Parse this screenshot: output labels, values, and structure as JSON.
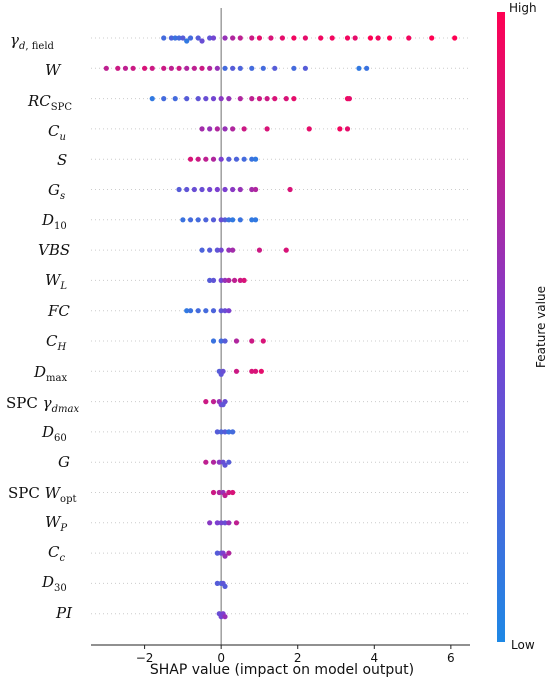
{
  "chart_data": {
    "type": "scatter",
    "subtype": "shap-beeswarm",
    "title": "",
    "xlabel": "SHAP value (impact on model output)",
    "ylabel": "",
    "xlim": [
      -3.4,
      6.5
    ],
    "xticks": [
      -2,
      0,
      2,
      4,
      6
    ],
    "xtick_labels": [
      "−2",
      "0",
      "2",
      "4",
      "6"
    ],
    "zero_line": 0,
    "grid": "horizontal dotted per feature",
    "colorbar": {
      "label": "Feature value",
      "high_label": "High",
      "low_label": "Low",
      "low_color": "#1e88e5",
      "high_color": "#ff0052",
      "placement": "right"
    },
    "features": [
      {
        "name": "γd,field",
        "points": [
          [
            -1.5,
            0.2
          ],
          [
            -1.3,
            0.25
          ],
          [
            -1.2,
            0.15
          ],
          [
            -1.1,
            0.2
          ],
          [
            -1.0,
            0.3
          ],
          [
            -0.9,
            0.1
          ],
          [
            -0.8,
            0.2
          ],
          [
            -0.6,
            0.3
          ],
          [
            -0.5,
            0.4
          ],
          [
            -0.3,
            0.35
          ],
          [
            -0.2,
            0.45
          ],
          [
            0.1,
            0.6
          ],
          [
            0.3,
            0.7
          ],
          [
            0.5,
            0.75
          ],
          [
            0.8,
            0.8
          ],
          [
            1.0,
            0.9
          ],
          [
            1.3,
            0.85
          ],
          [
            1.6,
            0.9
          ],
          [
            1.9,
            0.95
          ],
          [
            2.2,
            0.9
          ],
          [
            2.6,
            0.95
          ],
          [
            2.9,
            0.95
          ],
          [
            3.3,
            0.95
          ],
          [
            3.5,
            0.9
          ],
          [
            3.9,
            1.0
          ],
          [
            4.1,
            0.95
          ],
          [
            4.4,
            1.0
          ],
          [
            4.9,
            0.95
          ],
          [
            5.5,
            1.0
          ],
          [
            6.1,
            1.0
          ]
        ]
      },
      {
        "name": "W",
        "points": [
          [
            -3.0,
            0.75
          ],
          [
            -2.7,
            0.8
          ],
          [
            -2.5,
            0.75
          ],
          [
            -2.3,
            0.8
          ],
          [
            -2.0,
            0.85
          ],
          [
            -1.8,
            0.8
          ],
          [
            -1.5,
            0.8
          ],
          [
            -1.3,
            0.75
          ],
          [
            -1.1,
            0.8
          ],
          [
            -0.9,
            0.7
          ],
          [
            -0.7,
            0.75
          ],
          [
            -0.5,
            0.8
          ],
          [
            -0.3,
            0.7
          ],
          [
            -0.1,
            0.6
          ],
          [
            0.1,
            0.2
          ],
          [
            0.3,
            0.3
          ],
          [
            0.5,
            0.25
          ],
          [
            0.8,
            0.2
          ],
          [
            1.1,
            0.2
          ],
          [
            1.4,
            0.3
          ],
          [
            1.9,
            0.2
          ],
          [
            2.2,
            0.3
          ],
          [
            3.6,
            0.1
          ],
          [
            3.8,
            0.15
          ]
        ]
      },
      {
        "name": "RCSPC",
        "points": [
          [
            -1.8,
            0.1
          ],
          [
            -1.5,
            0.2
          ],
          [
            -1.2,
            0.2
          ],
          [
            -0.9,
            0.3
          ],
          [
            -0.6,
            0.35
          ],
          [
            -0.4,
            0.4
          ],
          [
            -0.2,
            0.45
          ],
          [
            0.0,
            0.55
          ],
          [
            0.2,
            0.6
          ],
          [
            0.5,
            0.7
          ],
          [
            0.8,
            0.75
          ],
          [
            1.0,
            0.8
          ],
          [
            1.2,
            0.8
          ],
          [
            1.4,
            0.85
          ],
          [
            1.7,
            0.85
          ],
          [
            1.9,
            0.9
          ],
          [
            3.3,
            0.95
          ],
          [
            3.35,
            0.9
          ]
        ]
      },
      {
        "name": "Cu",
        "points": [
          [
            -0.5,
            0.65
          ],
          [
            -0.3,
            0.6
          ],
          [
            -0.1,
            0.7
          ],
          [
            0.1,
            0.6
          ],
          [
            0.3,
            0.7
          ],
          [
            0.6,
            0.8
          ],
          [
            1.2,
            0.85
          ],
          [
            2.3,
            0.9
          ],
          [
            3.1,
            0.95
          ],
          [
            3.3,
            0.9
          ]
        ]
      },
      {
        "name": "S",
        "points": [
          [
            -0.8,
            0.85
          ],
          [
            -0.6,
            0.8
          ],
          [
            -0.4,
            0.75
          ],
          [
            -0.2,
            0.7
          ],
          [
            0.0,
            0.5
          ],
          [
            0.2,
            0.3
          ],
          [
            0.4,
            0.25
          ],
          [
            0.6,
            0.2
          ],
          [
            0.8,
            0.15
          ],
          [
            0.9,
            0.1
          ]
        ]
      },
      {
        "name": "Gs",
        "points": [
          [
            -1.1,
            0.3
          ],
          [
            -0.9,
            0.35
          ],
          [
            -0.7,
            0.4
          ],
          [
            -0.5,
            0.4
          ],
          [
            -0.3,
            0.45
          ],
          [
            -0.1,
            0.5
          ],
          [
            0.1,
            0.5
          ],
          [
            0.3,
            0.55
          ],
          [
            0.5,
            0.6
          ],
          [
            0.8,
            0.65
          ],
          [
            0.9,
            0.7
          ],
          [
            1.8,
            0.85
          ]
        ]
      },
      {
        "name": "D10",
        "points": [
          [
            -1.0,
            0.15
          ],
          [
            -0.8,
            0.2
          ],
          [
            -0.6,
            0.2
          ],
          [
            -0.4,
            0.25
          ],
          [
            -0.2,
            0.3
          ],
          [
            0.0,
            0.4
          ],
          [
            0.1,
            0.3
          ],
          [
            0.2,
            0.15
          ],
          [
            0.3,
            0.1
          ],
          [
            0.5,
            0.15
          ],
          [
            0.8,
            0.1
          ],
          [
            0.9,
            0.1
          ]
        ]
      },
      {
        "name": "VBS",
        "points": [
          [
            -0.5,
            0.25
          ],
          [
            -0.3,
            0.3
          ],
          [
            -0.1,
            0.35
          ],
          [
            0.0,
            0.45
          ],
          [
            0.2,
            0.6
          ],
          [
            0.3,
            0.65
          ],
          [
            1.0,
            0.8
          ],
          [
            1.7,
            0.85
          ]
        ]
      },
      {
        "name": "WL",
        "points": [
          [
            -0.3,
            0.3
          ],
          [
            -0.2,
            0.35
          ],
          [
            0.0,
            0.45
          ],
          [
            0.1,
            0.6
          ],
          [
            0.2,
            0.7
          ],
          [
            0.35,
            0.75
          ],
          [
            0.5,
            0.8
          ],
          [
            0.6,
            0.85
          ]
        ]
      },
      {
        "name": "FC",
        "points": [
          [
            -0.9,
            0.1
          ],
          [
            -0.8,
            0.15
          ],
          [
            -0.6,
            0.2
          ],
          [
            -0.4,
            0.2
          ],
          [
            -0.2,
            0.25
          ],
          [
            0.0,
            0.35
          ],
          [
            0.1,
            0.4
          ],
          [
            0.2,
            0.5
          ]
        ]
      },
      {
        "name": "CH",
        "points": [
          [
            -0.2,
            0.15
          ],
          [
            0.0,
            0.2
          ],
          [
            0.1,
            0.3
          ],
          [
            0.4,
            0.7
          ],
          [
            0.8,
            0.8
          ],
          [
            1.1,
            0.85
          ]
        ]
      },
      {
        "name": "Dmax",
        "points": [
          [
            -0.05,
            0.3
          ],
          [
            0.0,
            0.35
          ],
          [
            0.05,
            0.4
          ],
          [
            0.4,
            0.8
          ],
          [
            0.8,
            0.85
          ],
          [
            0.9,
            0.85
          ],
          [
            1.05,
            0.9
          ]
        ]
      },
      {
        "name": "SPC γdmax",
        "points": [
          [
            -0.4,
            0.8
          ],
          [
            -0.2,
            0.75
          ],
          [
            -0.05,
            0.6
          ],
          [
            0.0,
            0.45
          ],
          [
            0.1,
            0.4
          ],
          [
            0.05,
            0.35
          ]
        ]
      },
      {
        "name": "D60",
        "points": [
          [
            -0.1,
            0.3
          ],
          [
            0.0,
            0.25
          ],
          [
            0.1,
            0.3
          ],
          [
            0.2,
            0.15
          ],
          [
            0.3,
            0.2
          ]
        ]
      },
      {
        "name": "G",
        "points": [
          [
            -0.4,
            0.75
          ],
          [
            -0.2,
            0.7
          ],
          [
            -0.05,
            0.55
          ],
          [
            0.05,
            0.4
          ],
          [
            0.1,
            0.35
          ],
          [
            0.2,
            0.3
          ]
        ]
      },
      {
        "name": "SPC Wopt",
        "points": [
          [
            -0.2,
            0.8
          ],
          [
            -0.05,
            0.7
          ],
          [
            0.05,
            0.6
          ],
          [
            0.1,
            0.75
          ],
          [
            0.2,
            0.8
          ],
          [
            0.3,
            0.85
          ]
        ]
      },
      {
        "name": "WP",
        "points": [
          [
            -0.3,
            0.55
          ],
          [
            -0.1,
            0.5
          ],
          [
            0.0,
            0.45
          ],
          [
            0.1,
            0.4
          ],
          [
            0.2,
            0.6
          ],
          [
            0.4,
            0.75
          ]
        ]
      },
      {
        "name": "Cc",
        "points": [
          [
            -0.1,
            0.3
          ],
          [
            0.0,
            0.35
          ],
          [
            0.05,
            0.5
          ],
          [
            0.1,
            0.6
          ],
          [
            0.2,
            0.7
          ]
        ]
      },
      {
        "name": "D30",
        "points": [
          [
            -0.1,
            0.3
          ],
          [
            0.0,
            0.25
          ],
          [
            0.05,
            0.35
          ],
          [
            0.1,
            0.3
          ]
        ]
      },
      {
        "name": "PI",
        "points": [
          [
            -0.05,
            0.4
          ],
          [
            0.0,
            0.45
          ],
          [
            0.05,
            0.5
          ],
          [
            0.1,
            0.6
          ]
        ]
      }
    ]
  }
}
